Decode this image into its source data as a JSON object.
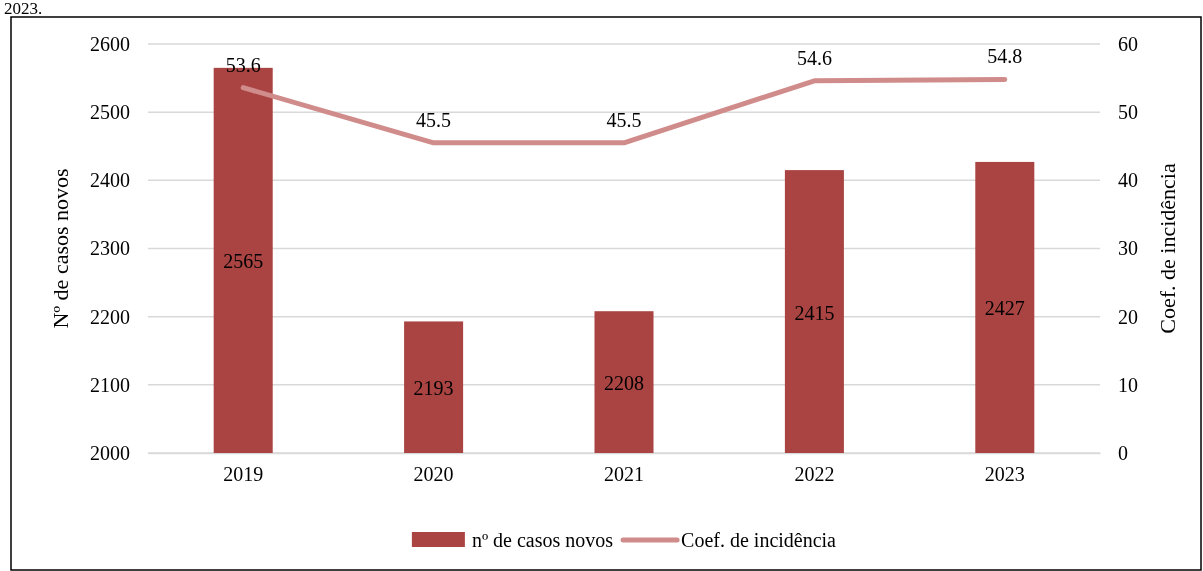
{
  "chart_data": {
    "type": "bar",
    "categories": [
      "2019",
      "2020",
      "2021",
      "2022",
      "2023"
    ],
    "series": [
      {
        "name": "nº de casos novos",
        "color": "#a94442",
        "values": [
          2565,
          2193,
          2208,
          2415,
          2427
        ]
      },
      {
        "name": "Coef. de incidência",
        "type": "line",
        "axis": "y2",
        "color": "#d08c8a",
        "values": [
          53.6,
          45.5,
          45.5,
          54.6,
          54.8
        ]
      }
    ],
    "ylabel": "Nº de casos novos",
    "y2label": "Coef. de incidência",
    "ylim": [
      2000,
      2600
    ],
    "yticks": [
      2000,
      2100,
      2200,
      2300,
      2400,
      2500,
      2600
    ],
    "y2lim": [
      0,
      60
    ],
    "y2ticks": [
      0,
      10,
      20,
      30,
      40,
      50,
      60
    ],
    "grid": "y",
    "legend": "bottom",
    "data_labels": true,
    "marker": "none",
    "line_style": "solid",
    "annotations": [
      "2023."
    ]
  }
}
